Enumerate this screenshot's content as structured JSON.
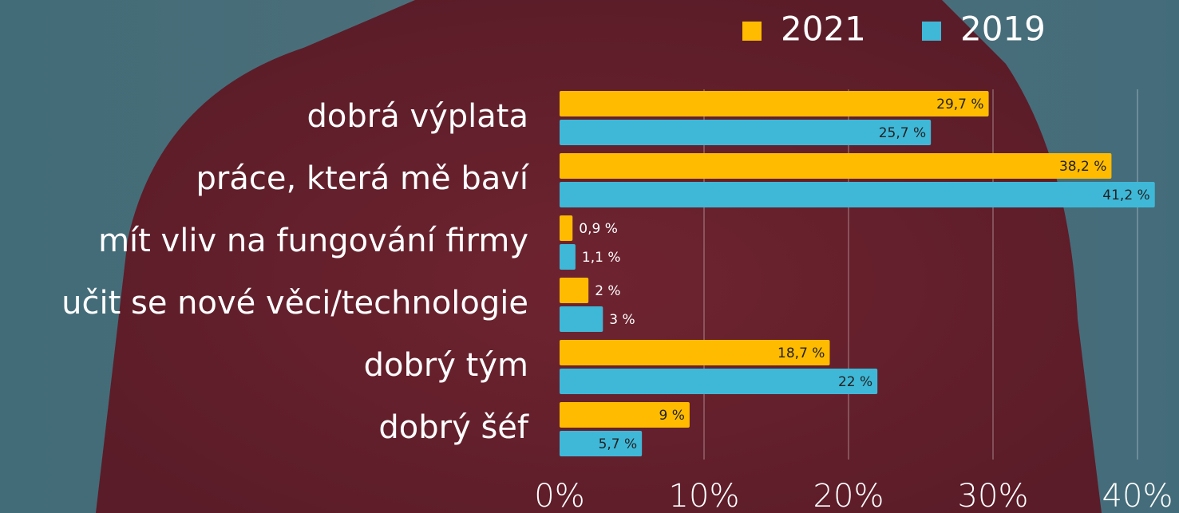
{
  "chart_data": {
    "type": "hbar",
    "categories": [
      "dobrá výplata",
      "práce, která mě baví",
      "mít vliv na fungování firmy",
      "učit se nové věci/technologie",
      "dobrý tým",
      "dobrý šéf"
    ],
    "series": [
      {
        "name": "2021",
        "color": "#ffbb00",
        "values": [
          29.7,
          38.2,
          0.9,
          2,
          18.7,
          9
        ],
        "value_labels": [
          "29,7 %",
          "38,2 %",
          "0,9 %",
          "2 %",
          "18,7 %",
          "9 %"
        ]
      },
      {
        "name": "2019",
        "color": "#3fb8d8",
        "values": [
          25.7,
          41.2,
          1.1,
          3,
          22,
          5.7
        ],
        "value_labels": [
          "25,7 %",
          "41,2 %",
          "1,1 %",
          "3 %",
          "22 %",
          "5,7 %"
        ]
      }
    ],
    "xlim": [
      0,
      40
    ],
    "xticks": [
      {
        "value": 0,
        "label": "0%"
      },
      {
        "value": 10,
        "label": "10%"
      },
      {
        "value": 20,
        "label": "20%"
      },
      {
        "value": 30,
        "label": "30%"
      },
      {
        "value": 40,
        "label": "40%"
      }
    ],
    "grid": true,
    "legend": "top-right"
  }
}
